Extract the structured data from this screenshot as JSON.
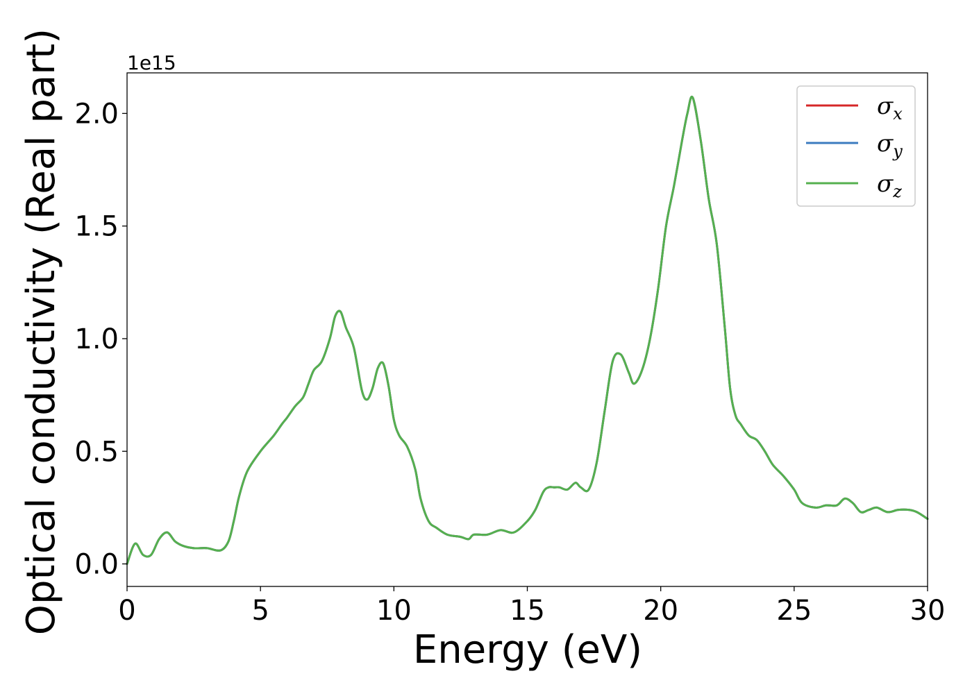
{
  "chart_data": {
    "type": "line",
    "xlabel": "Energy (eV)",
    "ylabel": "Optical conductivity (Real part)",
    "y_offset_label": "1e15",
    "xlim": [
      0,
      30
    ],
    "ylim": [
      -0.1,
      2.18
    ],
    "x_ticks": [
      0,
      5,
      10,
      15,
      20,
      25,
      30
    ],
    "x_tick_labels": [
      "0",
      "5",
      "10",
      "15",
      "20",
      "25",
      "30"
    ],
    "y_ticks": [
      0.0,
      0.5,
      1.0,
      1.5,
      2.0
    ],
    "y_tick_labels": [
      "0.0",
      "0.5",
      "1.0",
      "1.5",
      "2.0"
    ],
    "grid": false,
    "legend_position": "top-right",
    "colors": {
      "sigma_x": "#d62728",
      "sigma_y": "#3b7bbf",
      "sigma_z": "#55b04f"
    },
    "x": [
      0.0,
      0.3,
      0.6,
      0.9,
      1.2,
      1.5,
      1.8,
      2.1,
      2.5,
      3.0,
      3.5,
      3.8,
      4.0,
      4.2,
      4.5,
      5.0,
      5.5,
      5.8,
      6.0,
      6.3,
      6.6,
      6.8,
      7.0,
      7.3,
      7.6,
      7.8,
      8.0,
      8.2,
      8.5,
      8.8,
      9.0,
      9.2,
      9.4,
      9.6,
      9.8,
      10.0,
      10.2,
      10.5,
      10.8,
      11.0,
      11.3,
      11.6,
      12.0,
      12.5,
      12.8,
      13.0,
      13.5,
      14.0,
      14.5,
      15.0,
      15.3,
      15.6,
      15.8,
      16.0,
      16.2,
      16.5,
      16.8,
      17.0,
      17.3,
      17.6,
      17.9,
      18.2,
      18.5,
      18.8,
      19.0,
      19.3,
      19.6,
      19.9,
      20.2,
      20.5,
      20.8,
      21.0,
      21.2,
      21.5,
      21.8,
      22.1,
      22.4,
      22.6,
      22.8,
      23.0,
      23.3,
      23.6,
      23.9,
      24.2,
      24.6,
      25.0,
      25.3,
      25.8,
      26.2,
      26.6,
      26.9,
      27.2,
      27.5,
      27.8,
      28.1,
      28.5,
      28.9,
      29.3,
      29.6,
      30.0
    ],
    "series": [
      {
        "name": "σx",
        "values": [
          0.0,
          0.09,
          0.04,
          0.04,
          0.11,
          0.14,
          0.1,
          0.08,
          0.07,
          0.07,
          0.06,
          0.1,
          0.19,
          0.3,
          0.41,
          0.5,
          0.57,
          0.62,
          0.65,
          0.7,
          0.74,
          0.8,
          0.86,
          0.9,
          1.0,
          1.1,
          1.12,
          1.05,
          0.96,
          0.77,
          0.73,
          0.78,
          0.87,
          0.89,
          0.79,
          0.64,
          0.57,
          0.52,
          0.42,
          0.29,
          0.19,
          0.16,
          0.13,
          0.12,
          0.11,
          0.13,
          0.13,
          0.15,
          0.14,
          0.19,
          0.24,
          0.32,
          0.34,
          0.34,
          0.34,
          0.33,
          0.36,
          0.34,
          0.33,
          0.45,
          0.68,
          0.9,
          0.93,
          0.85,
          0.8,
          0.86,
          1.0,
          1.22,
          1.5,
          1.68,
          1.88,
          2.0,
          2.07,
          1.88,
          1.62,
          1.42,
          1.05,
          0.78,
          0.66,
          0.62,
          0.57,
          0.55,
          0.5,
          0.44,
          0.39,
          0.33,
          0.27,
          0.25,
          0.26,
          0.26,
          0.29,
          0.27,
          0.23,
          0.24,
          0.25,
          0.23,
          0.24,
          0.24,
          0.23,
          0.2
        ]
      },
      {
        "name": "σy",
        "values": [
          0.0,
          0.09,
          0.04,
          0.04,
          0.11,
          0.14,
          0.1,
          0.08,
          0.07,
          0.07,
          0.06,
          0.1,
          0.19,
          0.3,
          0.41,
          0.5,
          0.57,
          0.62,
          0.65,
          0.7,
          0.74,
          0.8,
          0.86,
          0.9,
          1.0,
          1.1,
          1.12,
          1.05,
          0.96,
          0.77,
          0.73,
          0.78,
          0.87,
          0.89,
          0.79,
          0.64,
          0.57,
          0.52,
          0.42,
          0.29,
          0.19,
          0.16,
          0.13,
          0.12,
          0.11,
          0.13,
          0.13,
          0.15,
          0.14,
          0.19,
          0.24,
          0.32,
          0.34,
          0.34,
          0.34,
          0.33,
          0.36,
          0.34,
          0.33,
          0.45,
          0.68,
          0.9,
          0.93,
          0.85,
          0.8,
          0.86,
          1.0,
          1.22,
          1.5,
          1.68,
          1.88,
          2.0,
          2.07,
          1.88,
          1.62,
          1.42,
          1.05,
          0.78,
          0.66,
          0.62,
          0.57,
          0.55,
          0.5,
          0.44,
          0.39,
          0.33,
          0.27,
          0.25,
          0.26,
          0.26,
          0.29,
          0.27,
          0.23,
          0.24,
          0.25,
          0.23,
          0.24,
          0.24,
          0.23,
          0.2
        ]
      },
      {
        "name": "σz",
        "values": [
          0.0,
          0.09,
          0.04,
          0.04,
          0.11,
          0.14,
          0.1,
          0.08,
          0.07,
          0.07,
          0.06,
          0.1,
          0.19,
          0.3,
          0.41,
          0.5,
          0.57,
          0.62,
          0.65,
          0.7,
          0.74,
          0.8,
          0.86,
          0.9,
          1.0,
          1.1,
          1.12,
          1.05,
          0.96,
          0.77,
          0.73,
          0.78,
          0.87,
          0.89,
          0.79,
          0.64,
          0.57,
          0.52,
          0.42,
          0.29,
          0.19,
          0.16,
          0.13,
          0.12,
          0.11,
          0.13,
          0.13,
          0.15,
          0.14,
          0.19,
          0.24,
          0.32,
          0.34,
          0.34,
          0.34,
          0.33,
          0.36,
          0.34,
          0.33,
          0.45,
          0.68,
          0.9,
          0.93,
          0.85,
          0.8,
          0.86,
          1.0,
          1.22,
          1.5,
          1.68,
          1.88,
          2.0,
          2.07,
          1.88,
          1.62,
          1.42,
          1.05,
          0.78,
          0.66,
          0.62,
          0.57,
          0.55,
          0.5,
          0.44,
          0.39,
          0.33,
          0.27,
          0.25,
          0.26,
          0.26,
          0.29,
          0.27,
          0.23,
          0.24,
          0.25,
          0.23,
          0.24,
          0.24,
          0.23,
          0.2
        ]
      }
    ],
    "legend": [
      {
        "symbol": "σ",
        "subscript": "x",
        "color_key": "sigma_x"
      },
      {
        "symbol": "σ",
        "subscript": "y",
        "color_key": "sigma_y"
      },
      {
        "symbol": "σ",
        "subscript": "z",
        "color_key": "sigma_z"
      }
    ]
  }
}
